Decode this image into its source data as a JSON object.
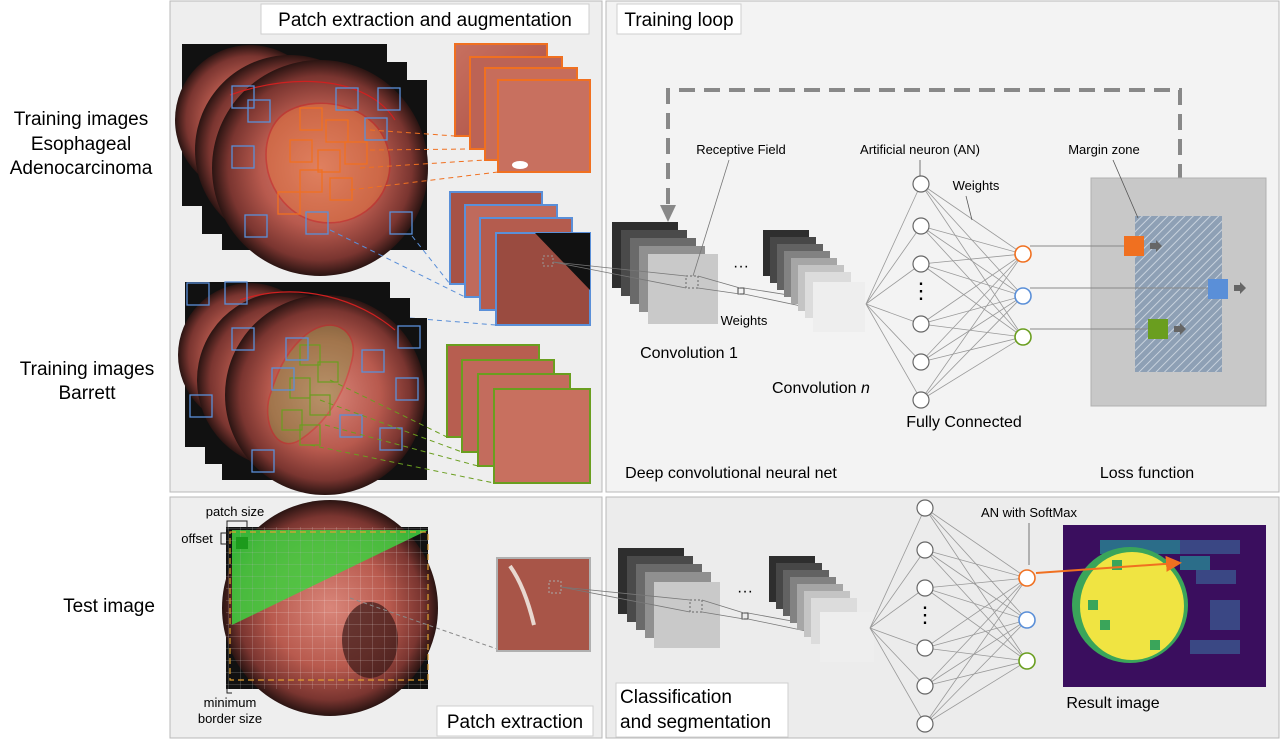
{
  "row_labels": {
    "training_adeno": [
      "Training images",
      "Esophageal",
      "Adenocarcinoma"
    ],
    "training_barrett": [
      "Training images",
      "Barrett"
    ],
    "test": "Test image"
  },
  "panels": {
    "patch_aug_title": "Patch extraction and augmentation",
    "training_loop_title": "Training loop",
    "patch_extraction_title": "Patch extraction",
    "classification_title": [
      "Classification",
      "and segmentation"
    ]
  },
  "training_loop": {
    "receptive_field": "Receptive Field",
    "weights_conv": "Weights",
    "conv1": "Convolution 1",
    "conv_n": "Convolution",
    "conv_n_italic": "n",
    "artificial_neuron": "Artificial neuron (AN)",
    "weights_fc": "Weights",
    "fully_connected": "Fully Connected",
    "margin_zone": "Margin zone",
    "deep_cnn": "Deep convolutional neural net",
    "loss_function": "Loss function",
    "ellipsis": "···",
    "vdots": "⋮"
  },
  "test_section": {
    "patch_size": "patch size",
    "offset": "offset",
    "minimum_border": [
      "minimum",
      "border size"
    ],
    "an_softmax": "AN with SoftMax",
    "result_image": "Result image"
  },
  "colors": {
    "cancer": "#f07020",
    "barrett": "#6a9e1f",
    "normal": "#5a8fd8",
    "panel_bg": "#eeeeee",
    "panel_border": "#b8b8b8",
    "tissue": "#c0665a",
    "result_bg": "#3a0e5e",
    "result_yellow": "#f0e442",
    "result_green": "#3aa55a"
  }
}
